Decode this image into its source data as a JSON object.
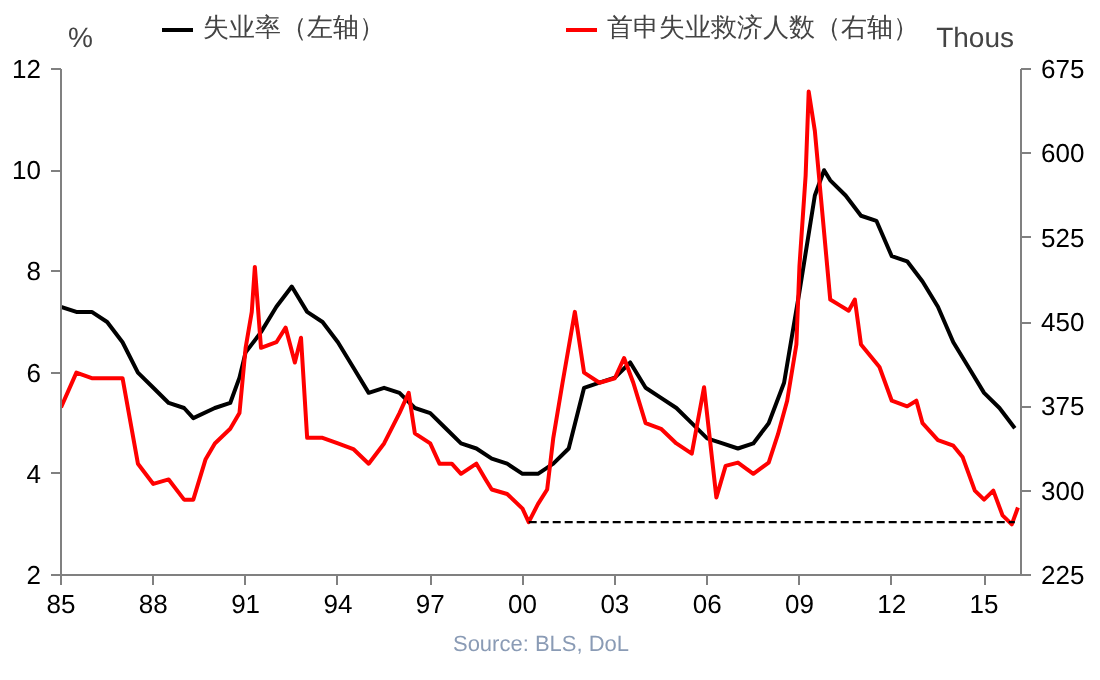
{
  "chart_data": {
    "type": "line",
    "ylabel": "%",
    "y2label": "Thous",
    "xlim": [
      1985,
      2016.2
    ],
    "xticks": [
      {
        "value": 1985,
        "label": "85"
      },
      {
        "value": 1988,
        "label": "88"
      },
      {
        "value": 1991,
        "label": "91"
      },
      {
        "value": 1994,
        "label": "94"
      },
      {
        "value": 1997,
        "label": "97"
      },
      {
        "value": 2000,
        "label": "00"
      },
      {
        "value": 2003,
        "label": "03"
      },
      {
        "value": 2006,
        "label": "06"
      },
      {
        "value": 2009,
        "label": "09"
      },
      {
        "value": 2012,
        "label": "12"
      },
      {
        "value": 2015,
        "label": "15"
      }
    ],
    "ylim": [
      2,
      12
    ],
    "yticks": [
      2,
      4,
      6,
      8,
      10,
      12
    ],
    "y2lim": [
      225,
      675
    ],
    "y2ticks": [
      225,
      300,
      375,
      450,
      525,
      600,
      675
    ],
    "legend": "top",
    "grid": false,
    "marker": "none",
    "line_style": "solid",
    "annotations": [
      "Source: BLS, DoL"
    ],
    "series": [
      {
        "name": "失业率（左轴）",
        "color": "#000000",
        "x": [
          1985,
          1985.5,
          1986,
          1986.5,
          1987,
          1987.5,
          1988,
          1988.5,
          1989,
          1989.3,
          1990,
          1990.5,
          1990.8,
          1991,
          1991.5,
          1992,
          1992.5,
          1993,
          1993.5,
          1994,
          1994.5,
          1995,
          1995.5,
          1996,
          1996.5,
          1997,
          1997.5,
          1998,
          1998.5,
          1999,
          1999.5,
          2000,
          2000.5,
          2001,
          2001.5,
          2002,
          2002.5,
          2003,
          2003.5,
          2004,
          2004.5,
          2005,
          2005.5,
          2006,
          2006.5,
          2007,
          2007.5,
          2008,
          2008.5,
          2009,
          2009.5,
          2009.8,
          2010,
          2010.5,
          2011,
          2011.5,
          2012,
          2012.5,
          2013,
          2013.5,
          2014,
          2014.5,
          2015,
          2015.5,
          2016
        ],
        "values": [
          7.3,
          7.2,
          7.2,
          7.0,
          6.6,
          6.0,
          5.7,
          5.4,
          5.3,
          5.1,
          5.3,
          5.4,
          5.9,
          6.4,
          6.8,
          7.3,
          7.7,
          7.2,
          7.0,
          6.6,
          6.1,
          5.6,
          5.7,
          5.6,
          5.3,
          5.2,
          4.9,
          4.6,
          4.5,
          4.3,
          4.2,
          4.0,
          4.0,
          4.2,
          4.5,
          5.7,
          5.8,
          5.9,
          6.2,
          5.7,
          5.5,
          5.3,
          5.0,
          4.7,
          4.6,
          4.5,
          4.6,
          5.0,
          5.8,
          7.6,
          9.5,
          10.0,
          9.8,
          9.5,
          9.1,
          9.0,
          8.3,
          8.2,
          7.8,
          7.3,
          6.6,
          6.1,
          5.6,
          5.3,
          4.9
        ]
      },
      {
        "name": "首申失业救济人数（右轴）",
        "color": "#ff0000",
        "axis": "y2",
        "x": [
          1985,
          1985.5,
          1986,
          1987,
          1987.5,
          1988,
          1988.5,
          1989,
          1989.3,
          1989.7,
          1990,
          1990.5,
          1990.8,
          1991,
          1991.2,
          1991.3,
          1991.5,
          1992,
          1992.3,
          1992.6,
          1992.8,
          1993,
          1993.5,
          1994,
          1994.5,
          1995,
          1995.5,
          1996,
          1996.3,
          1996.5,
          1997,
          1997.3,
          1997.7,
          1998,
          1998.5,
          1998.8,
          1999,
          1999.5,
          2000,
          2000.2,
          2000.5,
          2000.8,
          2001,
          2001.3,
          2001.7,
          2002,
          2002.5,
          2003,
          2003.3,
          2003.6,
          2004,
          2004.5,
          2005,
          2005.5,
          2005.9,
          2006.3,
          2006.6,
          2007,
          2007.5,
          2008,
          2008.3,
          2008.6,
          2008.9,
          2009,
          2009.2,
          2009.3,
          2009.5,
          2009.7,
          2009.9,
          2010,
          2010.3,
          2010.6,
          2010.8,
          2011,
          2011.3,
          2011.6,
          2012,
          2012.5,
          2012.8,
          2013,
          2013.5,
          2014,
          2014.3,
          2014.7,
          2015,
          2015.3,
          2015.6,
          2015.9,
          2016.1
        ],
        "values": [
          374,
          405,
          400,
          400,
          324,
          306,
          310,
          292,
          292,
          328,
          342,
          355,
          369,
          427,
          459,
          499,
          427,
          432,
          445,
          414,
          436,
          347,
          347,
          342,
          337,
          324,
          342,
          369,
          387,
          351,
          342,
          324,
          324,
          315,
          324,
          310,
          301,
          297,
          284,
          272,
          288,
          301,
          347,
          396,
          459,
          405,
          396,
          400,
          418,
          396,
          360,
          355,
          342,
          333,
          392,
          294,
          322,
          325,
          315,
          325,
          350,
          380,
          430,
          500,
          580,
          655,
          620,
          560,
          500,
          470,
          465,
          460,
          470,
          430,
          420,
          410,
          380,
          375,
          380,
          360,
          345,
          340,
          330,
          300,
          292,
          300,
          278,
          270,
          285
        ]
      },
      {
        "color": "#000000",
        "axis": "y2",
        "line_style": "dashed",
        "x": [
          2000.2,
          2016
        ],
        "values": [
          272,
          272
        ]
      }
    ]
  }
}
